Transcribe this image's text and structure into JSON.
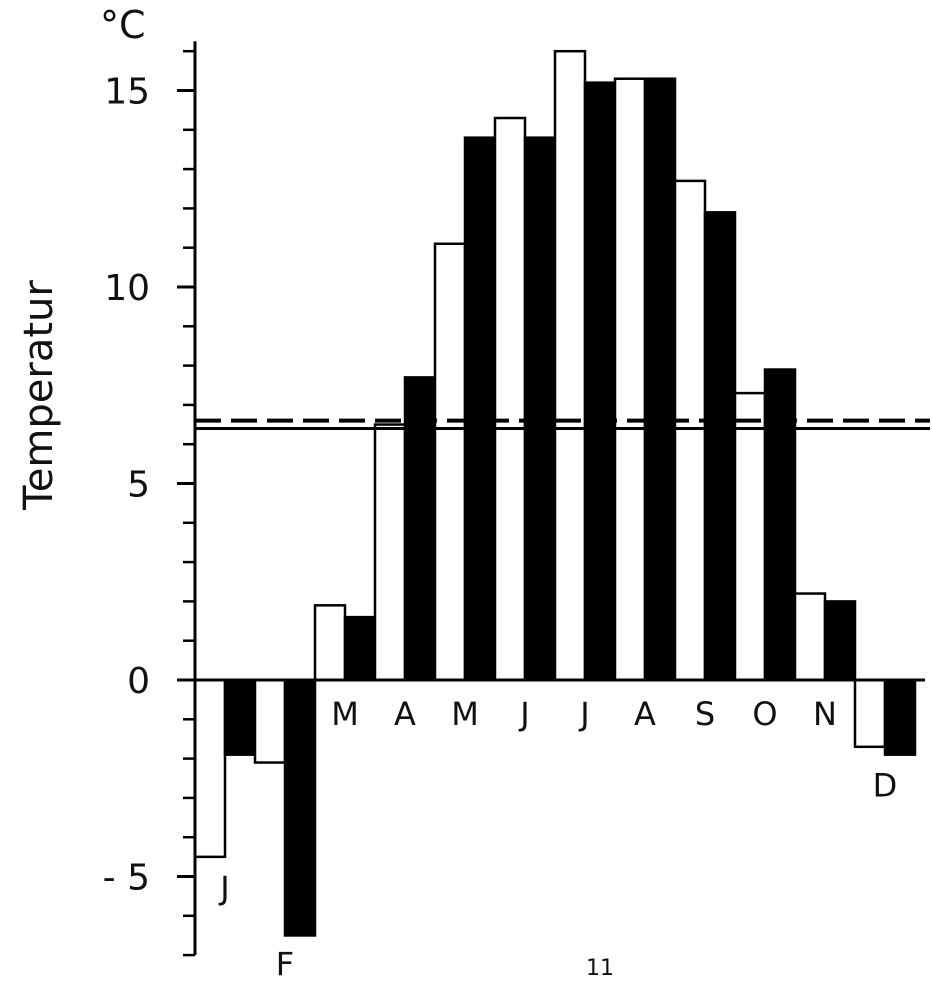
{
  "chart_data": {
    "type": "bar",
    "unit": "°C",
    "ylabel": "Temperatur",
    "ylim": [
      -7,
      16
    ],
    "yticks": [
      -5,
      0,
      5,
      10,
      15
    ],
    "months": [
      "J",
      "F",
      "M",
      "A",
      "M",
      "J",
      "J",
      "A",
      "S",
      "O",
      "N",
      "D"
    ],
    "series": [
      {
        "style": "white",
        "values": [
          -4.5,
          -2.1,
          1.9,
          6.5,
          11.1,
          14.3,
          16.0,
          15.3,
          12.7,
          7.3,
          2.2,
          -1.7
        ]
      },
      {
        "style": "black",
        "values": [
          -1.9,
          -6.5,
          1.6,
          7.7,
          13.8,
          13.8,
          15.2,
          15.3,
          11.9,
          7.9,
          2.0,
          -1.9
        ]
      }
    ],
    "reference_lines": [
      {
        "style": "dashed",
        "value": 6.6
      },
      {
        "style": "solid",
        "value": 6.4
      }
    ],
    "grid": false
  },
  "page_number": "11"
}
